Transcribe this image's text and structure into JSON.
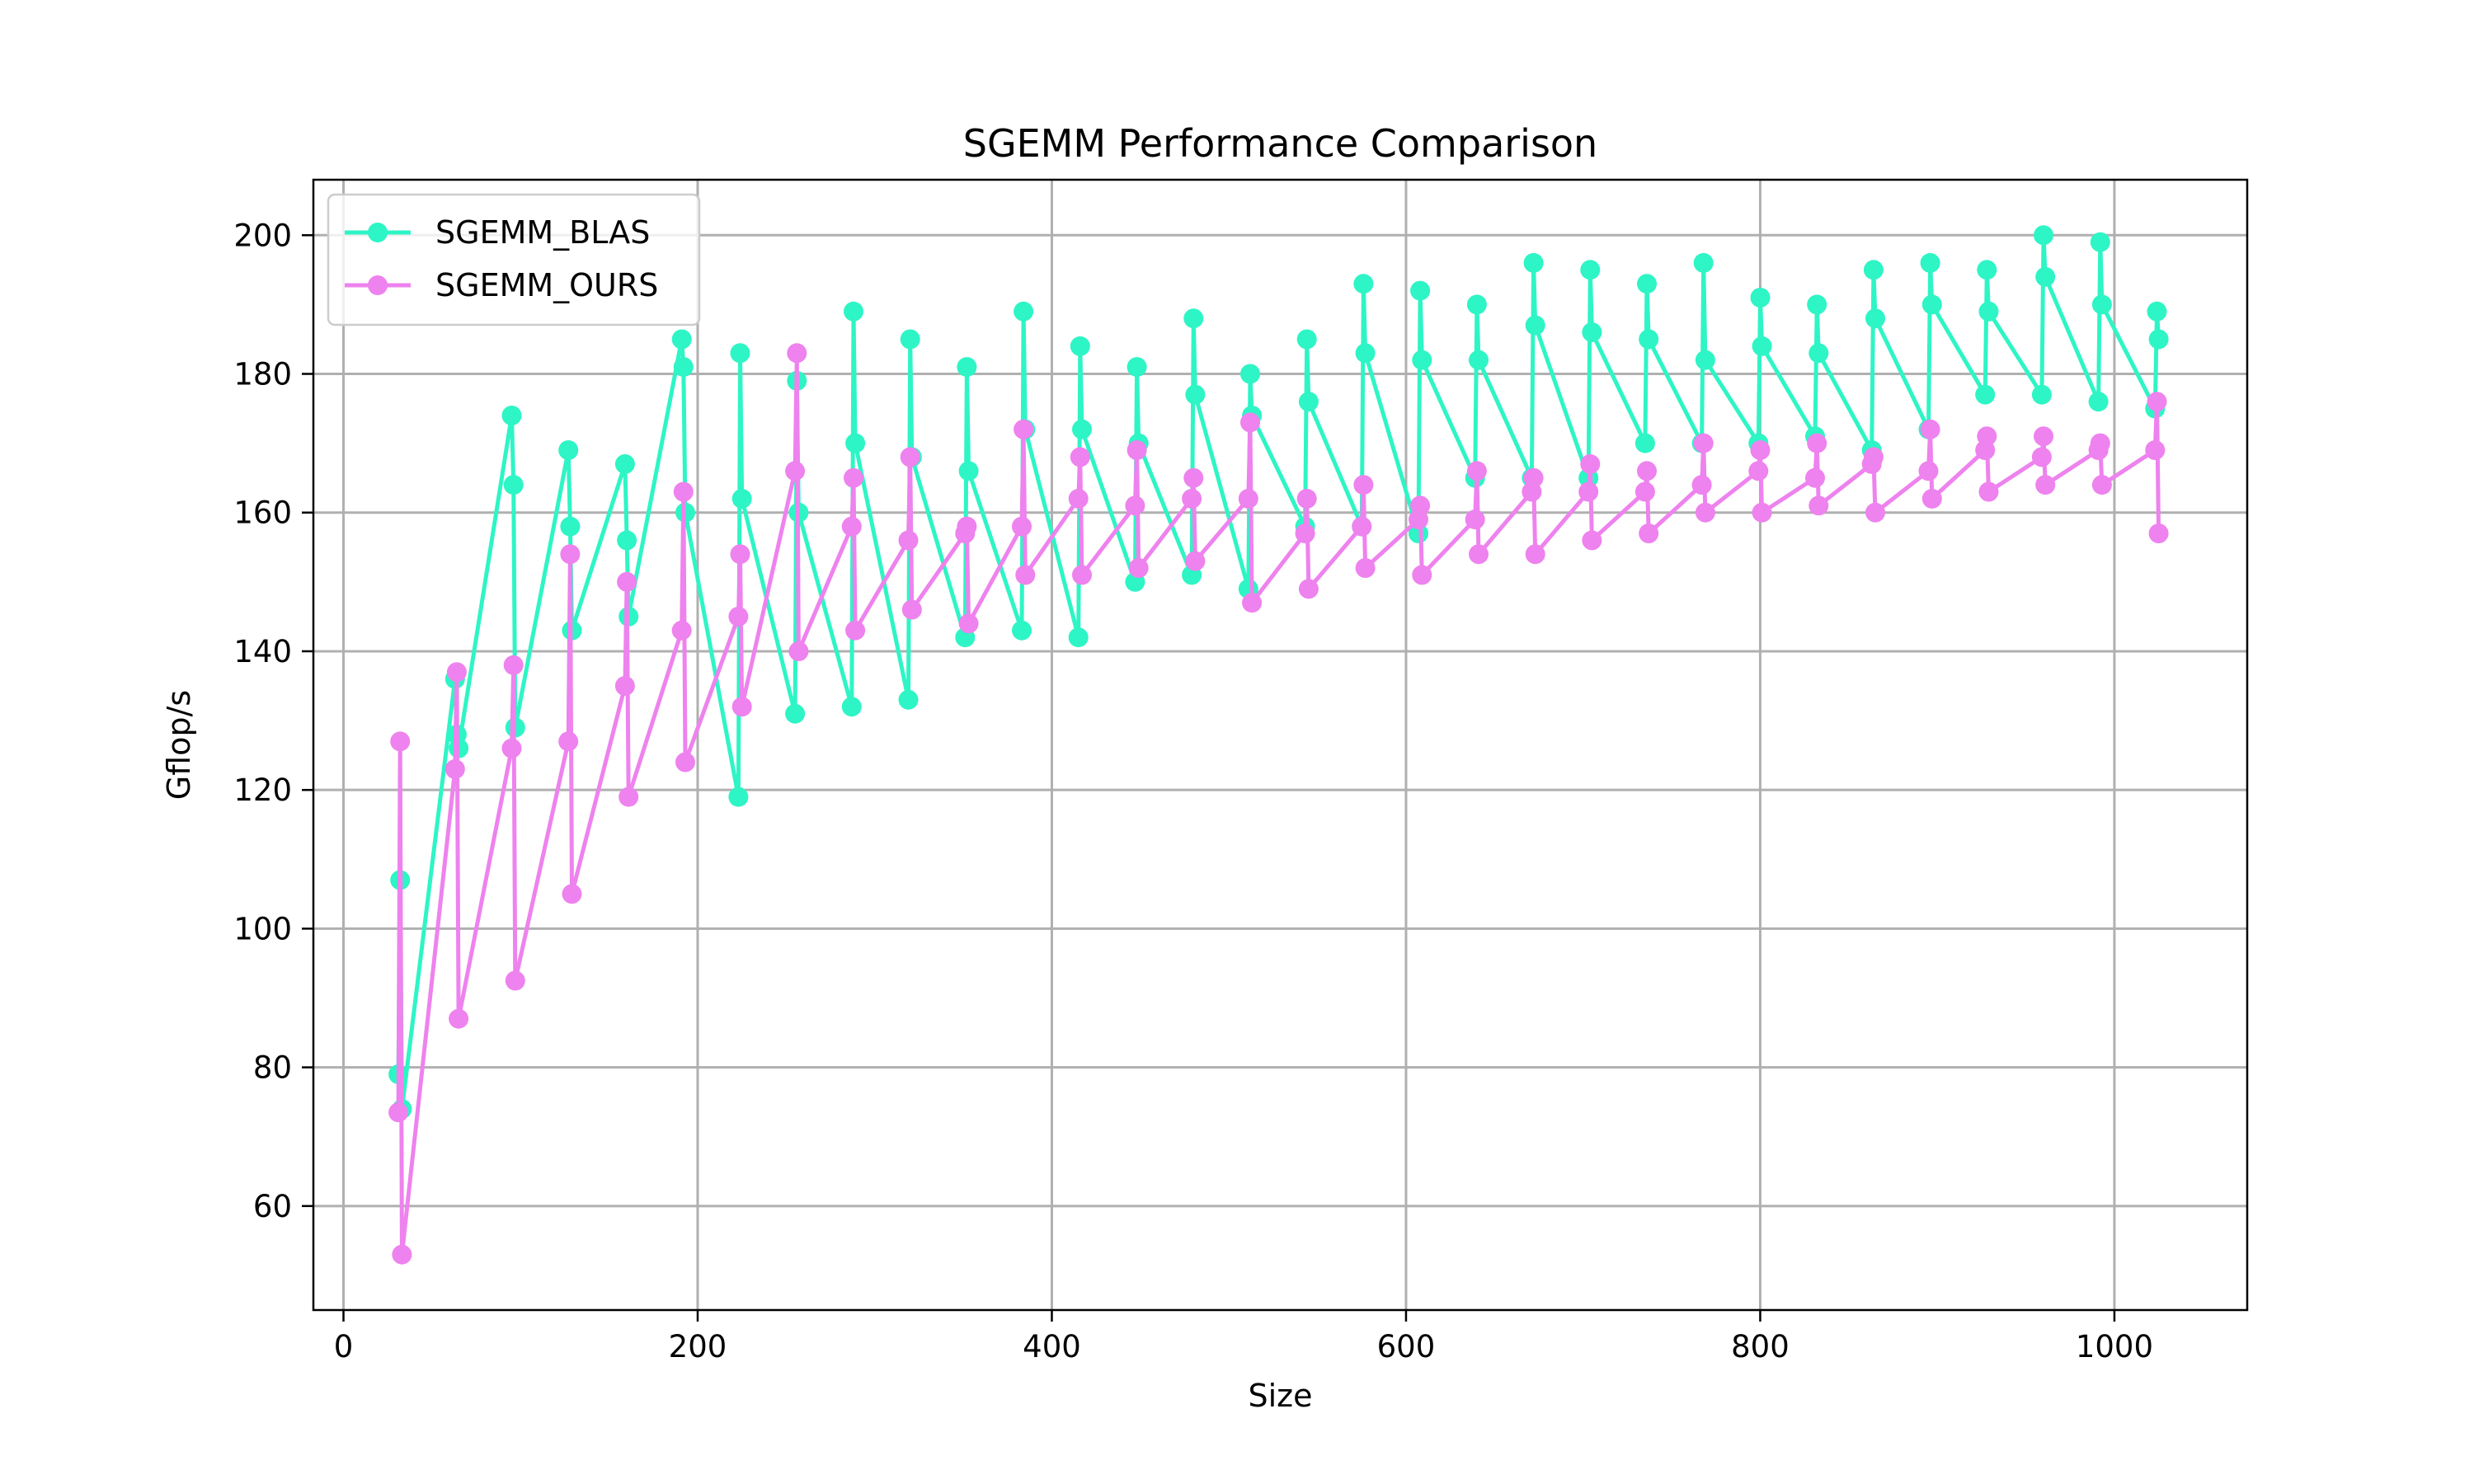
{
  "chart_data": {
    "type": "line",
    "title": "SGEMM Performance Comparison",
    "xlabel": "Size",
    "ylabel": "Gflop/s",
    "xlim": [
      -17,
      1075
    ],
    "ylim": [
      45,
      208
    ],
    "xticks": [
      0,
      200,
      400,
      600,
      800,
      1000
    ],
    "yticks": [
      60,
      80,
      100,
      120,
      140,
      160,
      180,
      200
    ],
    "grid": true,
    "legend_position": "top-left",
    "marker": "circle",
    "series": [
      {
        "name": "SGEMM_BLAS",
        "color": "#2ef5c5",
        "x": [
          31,
          32,
          33,
          63,
          64,
          65,
          95,
          96,
          97,
          127,
          128,
          129,
          159,
          160,
          161,
          191,
          192,
          193,
          223,
          224,
          225,
          255,
          256,
          257,
          287,
          288,
          289,
          319,
          320,
          321,
          351,
          352,
          353,
          383,
          384,
          385,
          415,
          416,
          417,
          447,
          448,
          449,
          479,
          480,
          481,
          511,
          512,
          513,
          543,
          544,
          545,
          575,
          576,
          577,
          607,
          608,
          609,
          639,
          640,
          641,
          671,
          672,
          673,
          703,
          704,
          705,
          735,
          736,
          737,
          767,
          768,
          769,
          799,
          800,
          801,
          831,
          832,
          833,
          863,
          864,
          865,
          895,
          896,
          897,
          927,
          928,
          929,
          959,
          960,
          961,
          991,
          992,
          993,
          1023,
          1024,
          1025
        ],
        "y": [
          79,
          107,
          74,
          136,
          128,
          126,
          174,
          164,
          129,
          169,
          158,
          143,
          167,
          156,
          145,
          185,
          181,
          160,
          119,
          183,
          162,
          131,
          179,
          160,
          132,
          189,
          170,
          133,
          185,
          168,
          142,
          181,
          166,
          143,
          189,
          172,
          142,
          184,
          172,
          150,
          181,
          170,
          151,
          188,
          177,
          149,
          180,
          174,
          158,
          185,
          176,
          158,
          193,
          183,
          157,
          192,
          182,
          165,
          190,
          182,
          165,
          196,
          187,
          165,
          195,
          186,
          170,
          193,
          185,
          170,
          196,
          182,
          170,
          191,
          184,
          171,
          190,
          183,
          169,
          195,
          188,
          172,
          196,
          190,
          177,
          195,
          189,
          177,
          200,
          194,
          176,
          199,
          190,
          175,
          189,
          185
        ]
      },
      {
        "name": "SGEMM_OURS",
        "color": "#ee82ee",
        "x": [
          31,
          32,
          33,
          63,
          64,
          65,
          95,
          96,
          97,
          127,
          128,
          129,
          159,
          160,
          161,
          191,
          192,
          193,
          223,
          224,
          225,
          255,
          256,
          257,
          287,
          288,
          289,
          319,
          320,
          321,
          351,
          352,
          353,
          383,
          384,
          385,
          415,
          416,
          417,
          447,
          448,
          449,
          479,
          480,
          481,
          511,
          512,
          513,
          543,
          544,
          545,
          575,
          576,
          577,
          607,
          608,
          609,
          639,
          640,
          641,
          671,
          672,
          673,
          703,
          704,
          705,
          735,
          736,
          737,
          767,
          768,
          769,
          799,
          800,
          801,
          831,
          832,
          833,
          863,
          864,
          865,
          895,
          896,
          897,
          927,
          928,
          929,
          959,
          960,
          961,
          991,
          992,
          993,
          1023,
          1024,
          1025
        ],
        "y": [
          73.5,
          127,
          53,
          123,
          137,
          87,
          126,
          138,
          92.5,
          127,
          154,
          105,
          135,
          150,
          119,
          143,
          163,
          124,
          145,
          154,
          132,
          166,
          183,
          140,
          158,
          165,
          143,
          156,
          168,
          146,
          157,
          158,
          144,
          158,
          172,
          151,
          162,
          168,
          151,
          161,
          169,
          152,
          162,
          165,
          153,
          162,
          173,
          147,
          157,
          162,
          149,
          158,
          164,
          152,
          159,
          161,
          151,
          159,
          166,
          154,
          163,
          165,
          154,
          163,
          167,
          156,
          163,
          166,
          157,
          164,
          170,
          160,
          166,
          169,
          160,
          165,
          170,
          161,
          167,
          168,
          160,
          166,
          172,
          162,
          169,
          171,
          163,
          168,
          171,
          164,
          169,
          170,
          164,
          169,
          176,
          157
        ]
      }
    ]
  }
}
